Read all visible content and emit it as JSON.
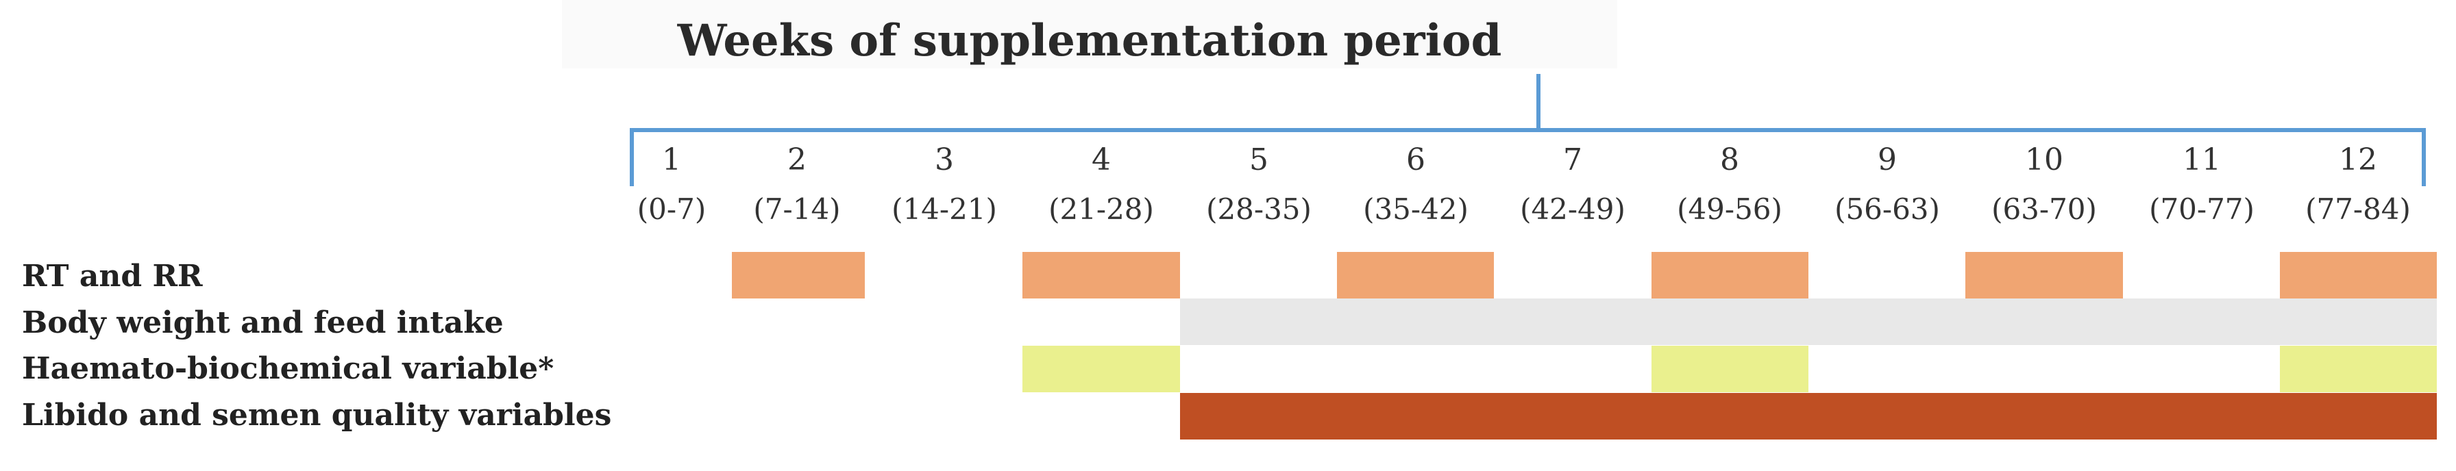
{
  "title": "Weeks of  supplementation period",
  "weeks": [
    {
      "num": "1",
      "range": "(0-7)"
    },
    {
      "num": "2",
      "range": "(7-14)"
    },
    {
      "num": "3",
      "range": "(14-21)"
    },
    {
      "num": "4",
      "range": "(21-28)"
    },
    {
      "num": "5",
      "range": "(28-35)"
    },
    {
      "num": "6",
      "range": "(35-42)"
    },
    {
      "num": "7",
      "range": "(42-49)"
    },
    {
      "num": "8",
      "range": "(49-56)"
    },
    {
      "num": "9",
      "range": "(56-63)"
    },
    {
      "num": "10",
      "range": "(63-70)"
    },
    {
      "num": "11",
      "range": "(70-77)"
    },
    {
      "num": "12",
      "range": "(77-84)"
    }
  ],
  "rows": [
    {
      "label": "RT and RR",
      "color": "#f0a572",
      "weeks": [
        2,
        4,
        6,
        8,
        10,
        12
      ]
    },
    {
      "label": "Body weight and feed intake",
      "color": "#e8e8e8",
      "weeks": [
        5,
        6,
        7,
        8,
        9,
        10,
        11,
        12
      ]
    },
    {
      "label": "Haemato-biochemical variable*",
      "color": "#eaf08e",
      "weeks": [
        4,
        8,
        12
      ]
    },
    {
      "label": "Libido and semen quality variables",
      "color": "#bf4f23",
      "weeks": [
        5,
        6,
        7,
        8,
        9,
        10,
        11,
        12
      ]
    }
  ],
  "bracket_color": "#5b9bd5"
}
